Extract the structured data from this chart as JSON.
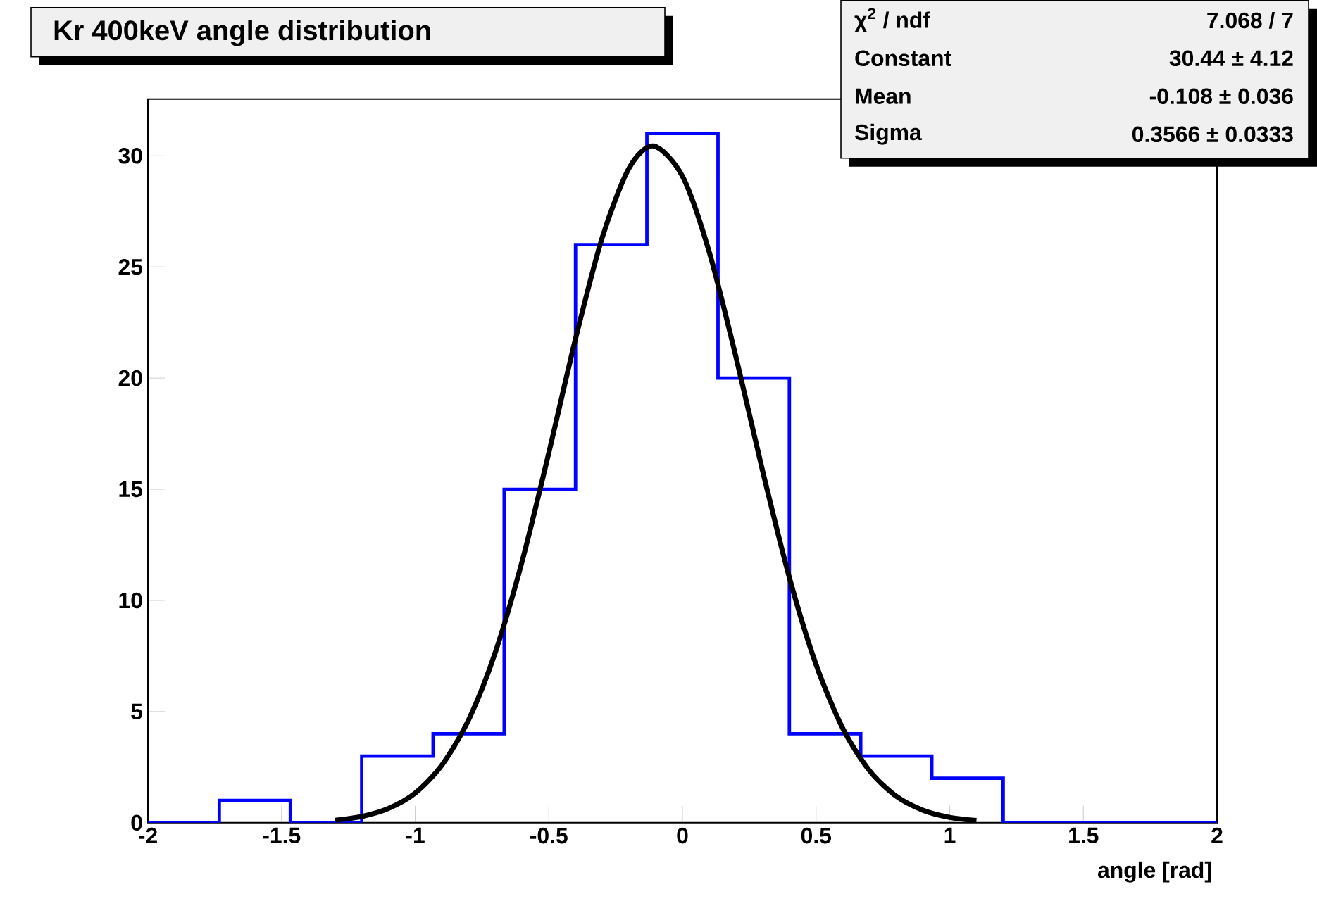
{
  "chart_data": {
    "type": "histogram",
    "title": "Kr 400keV angle distribution",
    "xlabel": "angle [rad]",
    "xlim": [
      -2,
      2
    ],
    "xticks": [
      -2,
      -1.5,
      -1,
      -0.5,
      0,
      0.5,
      1,
      1.5,
      2
    ],
    "ylim": [
      0,
      32.55
    ],
    "yticks": [
      0,
      5,
      10,
      15,
      20,
      25,
      30
    ],
    "series": [
      {
        "color": "#0000ff",
        "bins": [
          -2,
          -1.733,
          -1.467,
          -1.2,
          -0.933,
          -0.667,
          -0.4,
          -0.133,
          0.133,
          0.4,
          0.667,
          0.933,
          1.2,
          1.467,
          1.733,
          2
        ],
        "values": [
          0,
          1,
          0,
          3,
          4,
          15,
          26,
          31,
          20,
          4,
          3,
          2,
          0,
          0,
          0
        ]
      },
      {
        "type": "line",
        "color": "#000000",
        "x": [
          -1.3,
          -1.2,
          -1.1,
          -1.0,
          -0.9,
          -0.8,
          -0.7,
          -0.6,
          -0.5,
          -0.4,
          -0.3,
          -0.2,
          -0.108,
          0.0,
          0.1,
          0.2,
          0.3,
          0.4,
          0.5,
          0.6,
          0.7,
          0.8,
          0.9,
          1.0,
          1.1
        ],
        "values": [
          0.11,
          0.28,
          0.64,
          1.33,
          2.59,
          4.63,
          7.67,
          11.75,
          16.64,
          21.77,
          26.33,
          29.44,
          30.44,
          29.08,
          25.68,
          20.96,
          15.82,
          11.03,
          7.11,
          4.24,
          2.34,
          1.19,
          0.56,
          0.24,
          0.1
        ]
      }
    ],
    "annotations": [
      "χ$^{2}$ / ndf",
      "7.068 / 7",
      "Constant",
      "30.44 ± 4.12",
      "Mean",
      "-0.108 ± 0.036",
      "Sigma",
      "0.3566 ± 0.0333"
    ]
  }
}
